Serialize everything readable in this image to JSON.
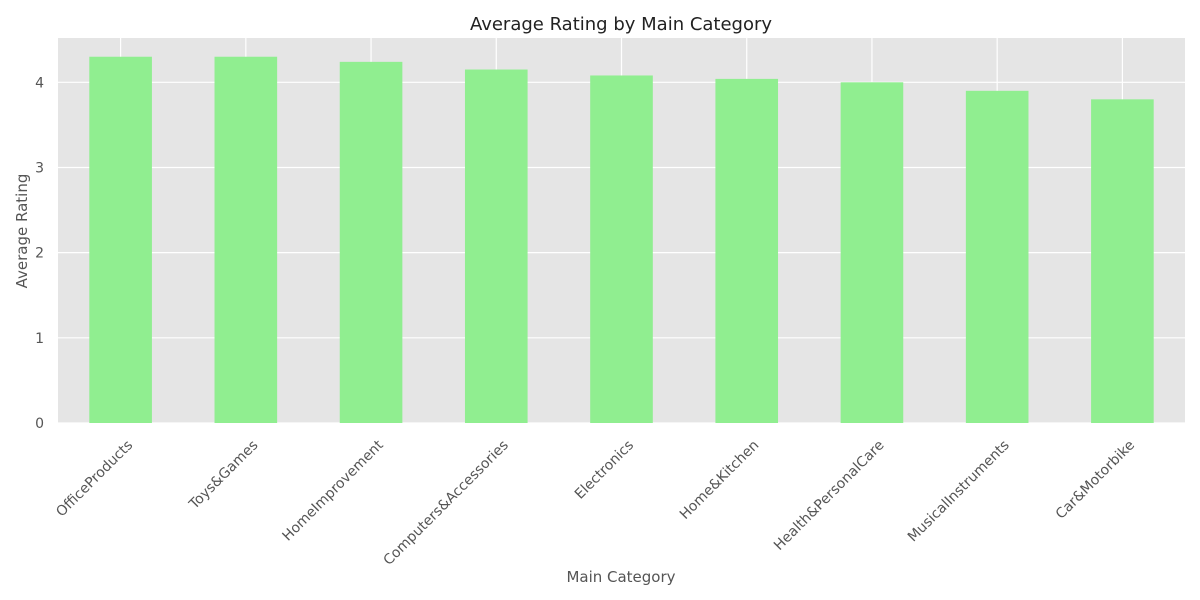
{
  "chart_data": {
    "type": "bar",
    "title": "Average Rating by Main Category",
    "xlabel": "Main Category",
    "ylabel": "Average Rating",
    "categories": [
      "OfficeProducts",
      "Toys&Games",
      "HomeImprovement",
      "Computers&Accessories",
      "Electronics",
      "Home&Kitchen",
      "Health&PersonalCare",
      "MusicalInstruments",
      "Car&Motorbike"
    ],
    "values": [
      4.3,
      4.3,
      4.24,
      4.15,
      4.08,
      4.04,
      4.0,
      3.9,
      3.8
    ],
    "ylim": [
      0,
      4.52
    ],
    "yticks": [
      "0",
      "1",
      "2",
      "3",
      "4"
    ],
    "grid": true,
    "bar_color": "#90EE90",
    "plot_background": "#E5E5E5",
    "grid_color": "#FFFFFF"
  }
}
